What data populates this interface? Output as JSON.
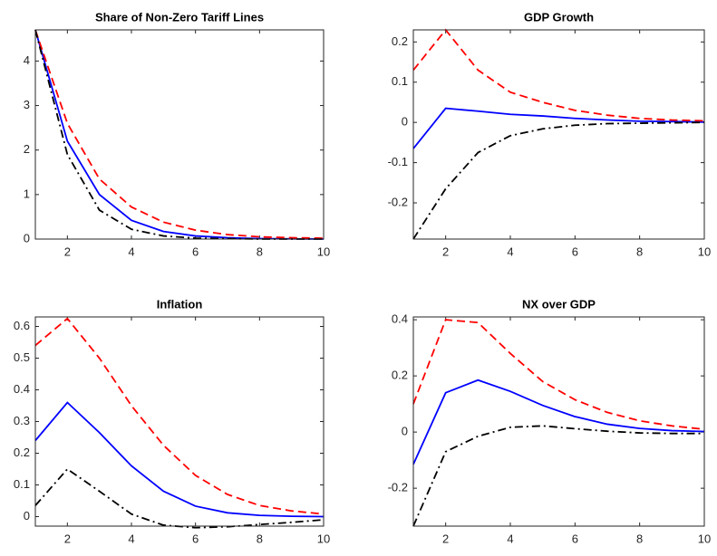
{
  "chart_data": [
    {
      "type": "line",
      "title": "Share of Non-Zero Tariff Lines",
      "x": [
        1,
        2,
        3,
        4,
        5,
        6,
        7,
        8,
        9,
        10
      ],
      "xlim": [
        1,
        10
      ],
      "xticks": [
        2,
        4,
        6,
        8,
        10
      ],
      "ylim": [
        0,
        4.7
      ],
      "yticks": [
        0,
        1,
        2,
        3,
        4
      ],
      "series": [
        {
          "color": "#0000ff",
          "linestyle": "solid",
          "values": [
            4.7,
            2.2,
            1.0,
            0.42,
            0.17,
            0.07,
            0.03,
            0.01,
            0.005,
            0
          ]
        },
        {
          "color": "#ff0000",
          "linestyle": "dashed",
          "values": [
            4.7,
            2.6,
            1.35,
            0.72,
            0.38,
            0.2,
            0.1,
            0.05,
            0.03,
            0.02
          ]
        },
        {
          "color": "#000000",
          "linestyle": "dashdot",
          "values": [
            4.7,
            1.9,
            0.65,
            0.22,
            0.07,
            0.02,
            0.01,
            0,
            0,
            0
          ]
        }
      ]
    },
    {
      "type": "line",
      "title": "GDP Growth",
      "x": [
        1,
        2,
        3,
        4,
        5,
        6,
        7,
        8,
        9,
        10
      ],
      "xlim": [
        1,
        10
      ],
      "xticks": [
        2,
        4,
        6,
        8,
        10
      ],
      "ylim": [
        -0.29,
        0.23
      ],
      "yticks": [
        -0.2,
        -0.1,
        0,
        0.1,
        0.2
      ],
      "series": [
        {
          "color": "#0000ff",
          "linestyle": "solid",
          "values": [
            -0.065,
            0.035,
            0.028,
            0.02,
            0.016,
            0.01,
            0.006,
            0.003,
            0.002,
            0.001
          ]
        },
        {
          "color": "#ff0000",
          "linestyle": "dashed",
          "values": [
            0.13,
            0.23,
            0.13,
            0.075,
            0.05,
            0.03,
            0.018,
            0.01,
            0.006,
            0.004
          ]
        },
        {
          "color": "#000000",
          "linestyle": "dashdot",
          "values": [
            -0.29,
            -0.165,
            -0.075,
            -0.033,
            -0.016,
            -0.007,
            -0.003,
            -0.002,
            -0.001,
            0
          ]
        }
      ]
    },
    {
      "type": "line",
      "title": "Inflation",
      "x": [
        1,
        2,
        3,
        4,
        5,
        6,
        7,
        8,
        9,
        10
      ],
      "xlim": [
        1,
        10
      ],
      "xticks": [
        2,
        4,
        6,
        8,
        10
      ],
      "ylim": [
        -0.03,
        0.63
      ],
      "yticks": [
        0,
        0.1,
        0.2,
        0.3,
        0.4,
        0.5,
        0.6
      ],
      "series": [
        {
          "color": "#0000ff",
          "linestyle": "solid",
          "values": [
            0.24,
            0.36,
            0.265,
            0.16,
            0.08,
            0.033,
            0.012,
            0.004,
            0.001,
            0
          ]
        },
        {
          "color": "#ff0000",
          "linestyle": "dashed",
          "values": [
            0.54,
            0.625,
            0.5,
            0.35,
            0.225,
            0.13,
            0.07,
            0.035,
            0.018,
            0.008
          ]
        },
        {
          "color": "#000000",
          "linestyle": "dashdot",
          "values": [
            0.035,
            0.15,
            0.08,
            0.008,
            -0.027,
            -0.035,
            -0.032,
            -0.025,
            -0.018,
            -0.01
          ]
        }
      ]
    },
    {
      "type": "line",
      "title": "NX over GDP",
      "x": [
        1,
        2,
        3,
        4,
        5,
        6,
        7,
        8,
        9,
        10
      ],
      "xlim": [
        1,
        10
      ],
      "xticks": [
        2,
        4,
        6,
        8,
        10
      ],
      "ylim": [
        -0.335,
        0.41
      ],
      "yticks": [
        -0.2,
        0,
        0.2,
        0.4
      ],
      "series": [
        {
          "color": "#0000ff",
          "linestyle": "solid",
          "values": [
            -0.115,
            0.14,
            0.185,
            0.145,
            0.095,
            0.055,
            0.028,
            0.013,
            0.005,
            0.002
          ]
        },
        {
          "color": "#ff0000",
          "linestyle": "dashed",
          "values": [
            0.1,
            0.4,
            0.39,
            0.28,
            0.18,
            0.115,
            0.07,
            0.04,
            0.022,
            0.01
          ]
        },
        {
          "color": "#000000",
          "linestyle": "dashdot",
          "values": [
            -0.335,
            -0.07,
            -0.015,
            0.017,
            0.022,
            0.012,
            0.003,
            -0.003,
            -0.005,
            -0.005
          ]
        }
      ]
    }
  ]
}
